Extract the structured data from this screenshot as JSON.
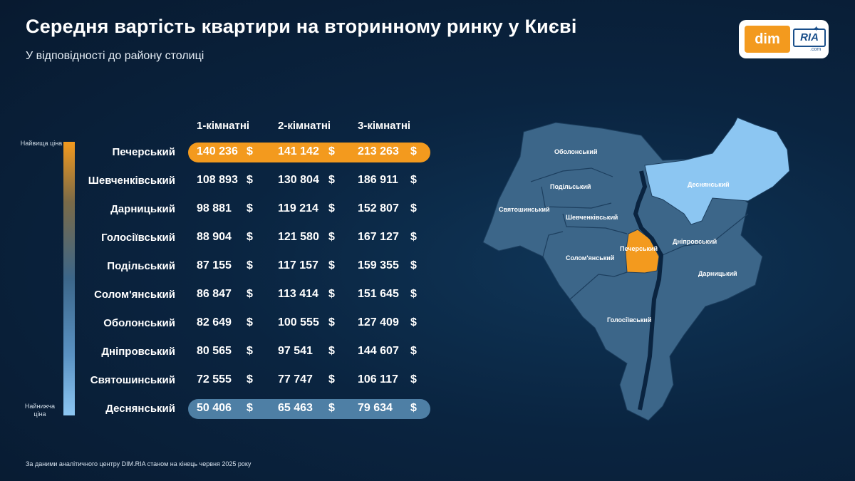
{
  "title": "Середня вартість квартири на вторинному ринку у Києві",
  "subtitle": "У відповідності до району столиці",
  "logo": {
    "dim": "dim",
    "ria": "RIA",
    "com": ".com"
  },
  "scale": {
    "top_label": "Найвища ціна",
    "bottom_label": "Найнижча ціна"
  },
  "footnote": "За даними аналітичного центру DIM.RIA станом на кінець червня 2025 року",
  "currency": "$",
  "colors": {
    "highest": "#f39a1e",
    "lowest": "#5a8fb7",
    "map_base": "#3c6689",
    "map_light": "#8cc6f2",
    "river": "#0a2440"
  },
  "chart_data": {
    "type": "table",
    "columns": [
      "1-кімнатні",
      "2-кімнатні",
      "3-кімнатні"
    ],
    "rows": [
      {
        "district": "Печерський",
        "values": [
          "140 236",
          "141 142",
          "213 263"
        ]
      },
      {
        "district": "Шевченківський",
        "values": [
          "108 893",
          "130 804",
          "186 911"
        ]
      },
      {
        "district": "Дарницький",
        "values": [
          "98 881",
          "119 214",
          "152 807"
        ]
      },
      {
        "district": "Голосіївський",
        "values": [
          "88 904",
          "121 580",
          "167 127"
        ]
      },
      {
        "district": "Подільський",
        "values": [
          "87 155",
          "117 157",
          "159 355"
        ]
      },
      {
        "district": "Солом'янський",
        "values": [
          "86 847",
          "113 414",
          "151 645"
        ]
      },
      {
        "district": "Оболонський",
        "values": [
          "82 649",
          "100 555",
          "127 409"
        ]
      },
      {
        "district": "Дніпровський",
        "values": [
          "80 565",
          "97 541",
          "144 607"
        ]
      },
      {
        "district": "Святошинський",
        "values": [
          "72 555",
          "77 747",
          "106 117"
        ]
      },
      {
        "district": "Деснянський",
        "values": [
          "50 406",
          "65 463",
          "79 634"
        ]
      }
    ]
  },
  "map": {
    "labels": {
      "obolonskyi": "Оболонський",
      "desnianskyi": "Деснянський",
      "podilskyi": "Подільський",
      "sviatoshynskyi": "Святошинський",
      "shevchenkivskyi": "Шевченківський",
      "pecherskyi": "Печерський",
      "dniprovskyi": "Дніпровський",
      "solomianskyi": "Солом'янський",
      "darnytskyi": "Дарницький",
      "holosiivskyi": "Голосіївський"
    }
  }
}
